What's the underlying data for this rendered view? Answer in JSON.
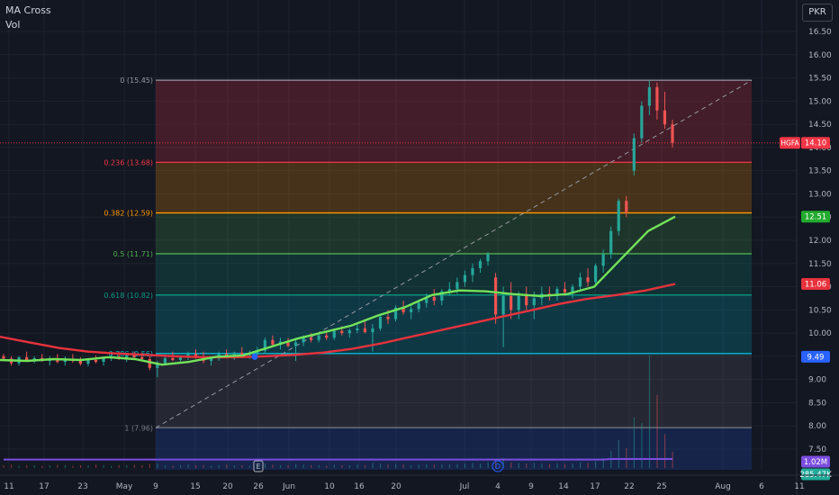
{
  "legend": {
    "study": "MA Cross",
    "volume": "Vol"
  },
  "currency": "PKR",
  "colors": {
    "background": "#131722",
    "up_candle": "#26a69a",
    "down_candle": "#ef5350",
    "ma_fast": "#73e35a",
    "ma_slow": "#e8323c",
    "volume_ma": "#7b4dde"
  },
  "chart_data": {
    "type": "candlestick",
    "symbol": "HGFA",
    "y_axis": {
      "range": [
        7.25,
        16.8
      ],
      "ticks": [
        "16.50",
        "16.00",
        "15.50",
        "15.00",
        "14.50",
        "14.00",
        "13.50",
        "13.00",
        "12.50",
        "12.00",
        "11.50",
        "11.00",
        "10.50",
        "10.00",
        "9.50",
        "9.00",
        "8.50",
        "8.00",
        "7.50"
      ]
    },
    "x_axis": {
      "ticks": [
        "11",
        "17",
        "23",
        "May",
        "9",
        "15",
        "20",
        "26",
        "Jun",
        "10",
        "16",
        "20",
        "Jul",
        "4",
        "9",
        "14",
        "17",
        "22",
        "25",
        "Aug",
        "6",
        "11"
      ]
    },
    "fibonacci": [
      {
        "label": "0 (15.45)",
        "level": 0,
        "price": 15.45,
        "color": "#9598a1"
      },
      {
        "label": "0.236 (13.68)",
        "level": 0.236,
        "price": 13.68,
        "color": "#f23645"
      },
      {
        "label": "0.382 (12.59)",
        "level": 0.382,
        "price": 12.59,
        "color": "#ff9800"
      },
      {
        "label": "0.5 (11.71)",
        "level": 0.5,
        "price": 11.71,
        "color": "#4caf50"
      },
      {
        "label": "0.618 (10.82)",
        "level": 0.618,
        "price": 10.82,
        "color": "#089981"
      },
      {
        "label": "0.786 (9.56)",
        "level": 0.786,
        "price": 9.56,
        "color": "#00bcd4"
      },
      {
        "label": "1 (7.96)",
        "level": 1,
        "price": 7.96,
        "color": "#787b86"
      }
    ],
    "price_labels": [
      {
        "text": "14.10",
        "tag": "HGFA",
        "color": "#f23645",
        "price": 14.1
      },
      {
        "text": "12.51",
        "color": "#22ab2e",
        "price": 12.51
      },
      {
        "text": "11.06",
        "color": "#e8323c",
        "price": 11.06
      },
      {
        "text": "9.49",
        "color": "#2962ff",
        "price": 9.49
      },
      {
        "text": "1.02M",
        "color": "#7b4dde"
      },
      {
        "text": "285.47K",
        "color": "#22ab9a"
      }
    ],
    "events": [
      {
        "label": "E",
        "type": "earnings"
      },
      {
        "label": "D",
        "type": "dividend"
      }
    ],
    "ma_fast": [
      9.42,
      9.4,
      9.44,
      9.42,
      9.48,
      9.44,
      9.32,
      9.38,
      9.49,
      9.52,
      9.7,
      9.88,
      10.02,
      10.16,
      10.38,
      10.56,
      10.82,
      10.92,
      10.9,
      10.84,
      10.8,
      10.84,
      11.0,
      11.6,
      12.2,
      12.51
    ],
    "ma_slow": [
      9.92,
      9.8,
      9.68,
      9.6,
      9.56,
      9.53,
      9.5,
      9.48,
      9.48,
      9.5,
      9.53,
      9.58,
      9.66,
      9.78,
      9.92,
      10.06,
      10.2,
      10.34,
      10.48,
      10.62,
      10.74,
      10.82,
      10.92,
      11.06
    ],
    "candles": [
      [
        9.5,
        9.55,
        9.4,
        9.45
      ],
      [
        9.45,
        9.5,
        9.3,
        9.35
      ],
      [
        9.35,
        9.5,
        9.3,
        9.48
      ],
      [
        9.48,
        9.6,
        9.4,
        9.42
      ],
      [
        9.42,
        9.5,
        9.35,
        9.46
      ],
      [
        9.46,
        9.55,
        9.38,
        9.4
      ],
      [
        9.4,
        9.5,
        9.3,
        9.45
      ],
      [
        9.45,
        9.55,
        9.35,
        9.38
      ],
      [
        9.38,
        9.5,
        9.3,
        9.44
      ],
      [
        9.44,
        9.55,
        9.36,
        9.4
      ],
      [
        9.4,
        9.48,
        9.3,
        9.34
      ],
      [
        9.34,
        9.46,
        9.28,
        9.42
      ],
      [
        9.42,
        9.52,
        9.35,
        9.38
      ],
      [
        9.38,
        9.5,
        9.3,
        9.46
      ],
      [
        9.46,
        9.6,
        9.4,
        9.5
      ],
      [
        9.5,
        9.6,
        9.42,
        9.45
      ],
      [
        9.45,
        9.55,
        9.38,
        9.52
      ],
      [
        9.52,
        9.6,
        9.44,
        9.48
      ],
      [
        9.48,
        9.58,
        9.4,
        9.44
      ],
      [
        9.44,
        9.5,
        9.2,
        9.25
      ],
      [
        9.25,
        9.4,
        9.05,
        9.35
      ],
      [
        9.35,
        9.5,
        9.3,
        9.46
      ],
      [
        9.46,
        9.6,
        9.4,
        9.42
      ],
      [
        9.42,
        9.5,
        9.35,
        9.48
      ],
      [
        9.48,
        9.6,
        9.42,
        9.55
      ],
      [
        9.55,
        9.65,
        9.45,
        9.5
      ],
      [
        9.5,
        9.6,
        9.35,
        9.4
      ],
      [
        9.4,
        9.5,
        9.3,
        9.45
      ],
      [
        9.45,
        9.6,
        9.4,
        9.55
      ],
      [
        9.55,
        9.65,
        9.45,
        9.5
      ],
      [
        9.5,
        9.6,
        9.42,
        9.58
      ],
      [
        9.58,
        9.7,
        9.5,
        9.52
      ],
      [
        9.52,
        9.62,
        9.44,
        9.56
      ],
      [
        9.56,
        9.7,
        9.5,
        9.62
      ],
      [
        9.62,
        9.9,
        9.55,
        9.85
      ],
      [
        9.85,
        9.95,
        9.7,
        9.75
      ],
      [
        9.75,
        9.9,
        9.65,
        9.82
      ],
      [
        9.82,
        9.9,
        9.7,
        9.72
      ],
      [
        9.72,
        9.85,
        9.4,
        9.8
      ],
      [
        9.8,
        9.95,
        9.72,
        9.9
      ],
      [
        9.9,
        10.0,
        9.8,
        9.85
      ],
      [
        9.85,
        10.0,
        9.8,
        9.95
      ],
      [
        9.95,
        10.05,
        9.85,
        9.9
      ],
      [
        9.9,
        10.1,
        9.85,
        10.05
      ],
      [
        10.05,
        10.15,
        9.95,
        10.0
      ],
      [
        10.0,
        10.1,
        9.9,
        10.06
      ],
      [
        10.06,
        10.2,
        10.0,
        10.1
      ],
      [
        10.1,
        10.3,
        10.0,
        10.02
      ],
      [
        10.02,
        10.2,
        9.6,
        10.1
      ],
      [
        10.1,
        10.4,
        10.05,
        10.35
      ],
      [
        10.35,
        10.5,
        10.2,
        10.3
      ],
      [
        10.3,
        10.6,
        10.25,
        10.55
      ],
      [
        10.55,
        10.7,
        10.4,
        10.45
      ],
      [
        10.45,
        10.6,
        10.3,
        10.52
      ],
      [
        10.52,
        10.7,
        10.45,
        10.65
      ],
      [
        10.65,
        10.85,
        10.55,
        10.78
      ],
      [
        10.78,
        10.95,
        10.6,
        10.7
      ],
      [
        10.7,
        10.95,
        10.6,
        10.9
      ],
      [
        10.9,
        11.1,
        10.8,
        10.95
      ],
      [
        10.95,
        11.2,
        10.85,
        11.1
      ],
      [
        11.1,
        11.35,
        11.0,
        11.25
      ],
      [
        11.25,
        11.5,
        11.1,
        11.4
      ],
      [
        11.4,
        11.6,
        11.3,
        11.55
      ],
      [
        11.55,
        11.75,
        11.45,
        11.7
      ],
      [
        11.2,
        11.3,
        10.2,
        10.4
      ],
      [
        10.4,
        11.0,
        9.7,
        10.8
      ],
      [
        10.8,
        11.1,
        10.3,
        10.5
      ],
      [
        10.5,
        10.9,
        10.3,
        10.8
      ],
      [
        10.8,
        11.0,
        10.5,
        10.6
      ],
      [
        10.6,
        10.9,
        10.3,
        10.75
      ],
      [
        10.75,
        11.0,
        10.6,
        10.85
      ],
      [
        10.85,
        11.0,
        10.7,
        10.8
      ],
      [
        10.8,
        11.0,
        10.7,
        10.95
      ],
      [
        10.95,
        11.1,
        10.8,
        10.88
      ],
      [
        10.88,
        11.05,
        10.75,
        11.0
      ],
      [
        11.0,
        11.3,
        10.9,
        11.2
      ],
      [
        11.2,
        11.4,
        11.0,
        11.1
      ],
      [
        11.1,
        11.5,
        11.0,
        11.45
      ],
      [
        11.45,
        11.8,
        11.3,
        11.7
      ],
      [
        11.7,
        12.3,
        11.6,
        12.2
      ],
      [
        12.2,
        12.9,
        12.1,
        12.85
      ],
      [
        12.85,
        12.95,
        12.5,
        12.6
      ],
      [
        13.5,
        14.3,
        13.4,
        14.2
      ],
      [
        14.2,
        15.0,
        14.1,
        14.9
      ],
      [
        14.9,
        15.45,
        14.7,
        15.3
      ],
      [
        15.3,
        15.4,
        14.6,
        14.8
      ],
      [
        14.8,
        15.2,
        14.4,
        14.5
      ],
      [
        14.5,
        14.6,
        14.0,
        14.1
      ]
    ],
    "volume": [
      0.05,
      0.06,
      0.04,
      0.05,
      0.05,
      0.04,
      0.05,
      0.06,
      0.05,
      0.04,
      0.05,
      0.05,
      0.06,
      0.05,
      0.04,
      0.05,
      0.05,
      0.06,
      0.05,
      0.07,
      0.08,
      0.05,
      0.04,
      0.05,
      0.06,
      0.05,
      0.05,
      0.04,
      0.05,
      0.06,
      0.05,
      0.05,
      0.04,
      0.05,
      0.08,
      0.06,
      0.05,
      0.05,
      0.07,
      0.06,
      0.05,
      0.05,
      0.04,
      0.06,
      0.05,
      0.05,
      0.06,
      0.05,
      0.09,
      0.08,
      0.06,
      0.07,
      0.06,
      0.05,
      0.06,
      0.07,
      0.06,
      0.07,
      0.06,
      0.07,
      0.08,
      0.09,
      0.08,
      0.1,
      0.15,
      0.18,
      0.1,
      0.09,
      0.08,
      0.09,
      0.08,
      0.07,
      0.08,
      0.07,
      0.08,
      0.1,
      0.09,
      0.12,
      0.18,
      0.3,
      0.5,
      0.35,
      0.9,
      0.8,
      2.0,
      1.3,
      0.6,
      0.29
    ]
  }
}
